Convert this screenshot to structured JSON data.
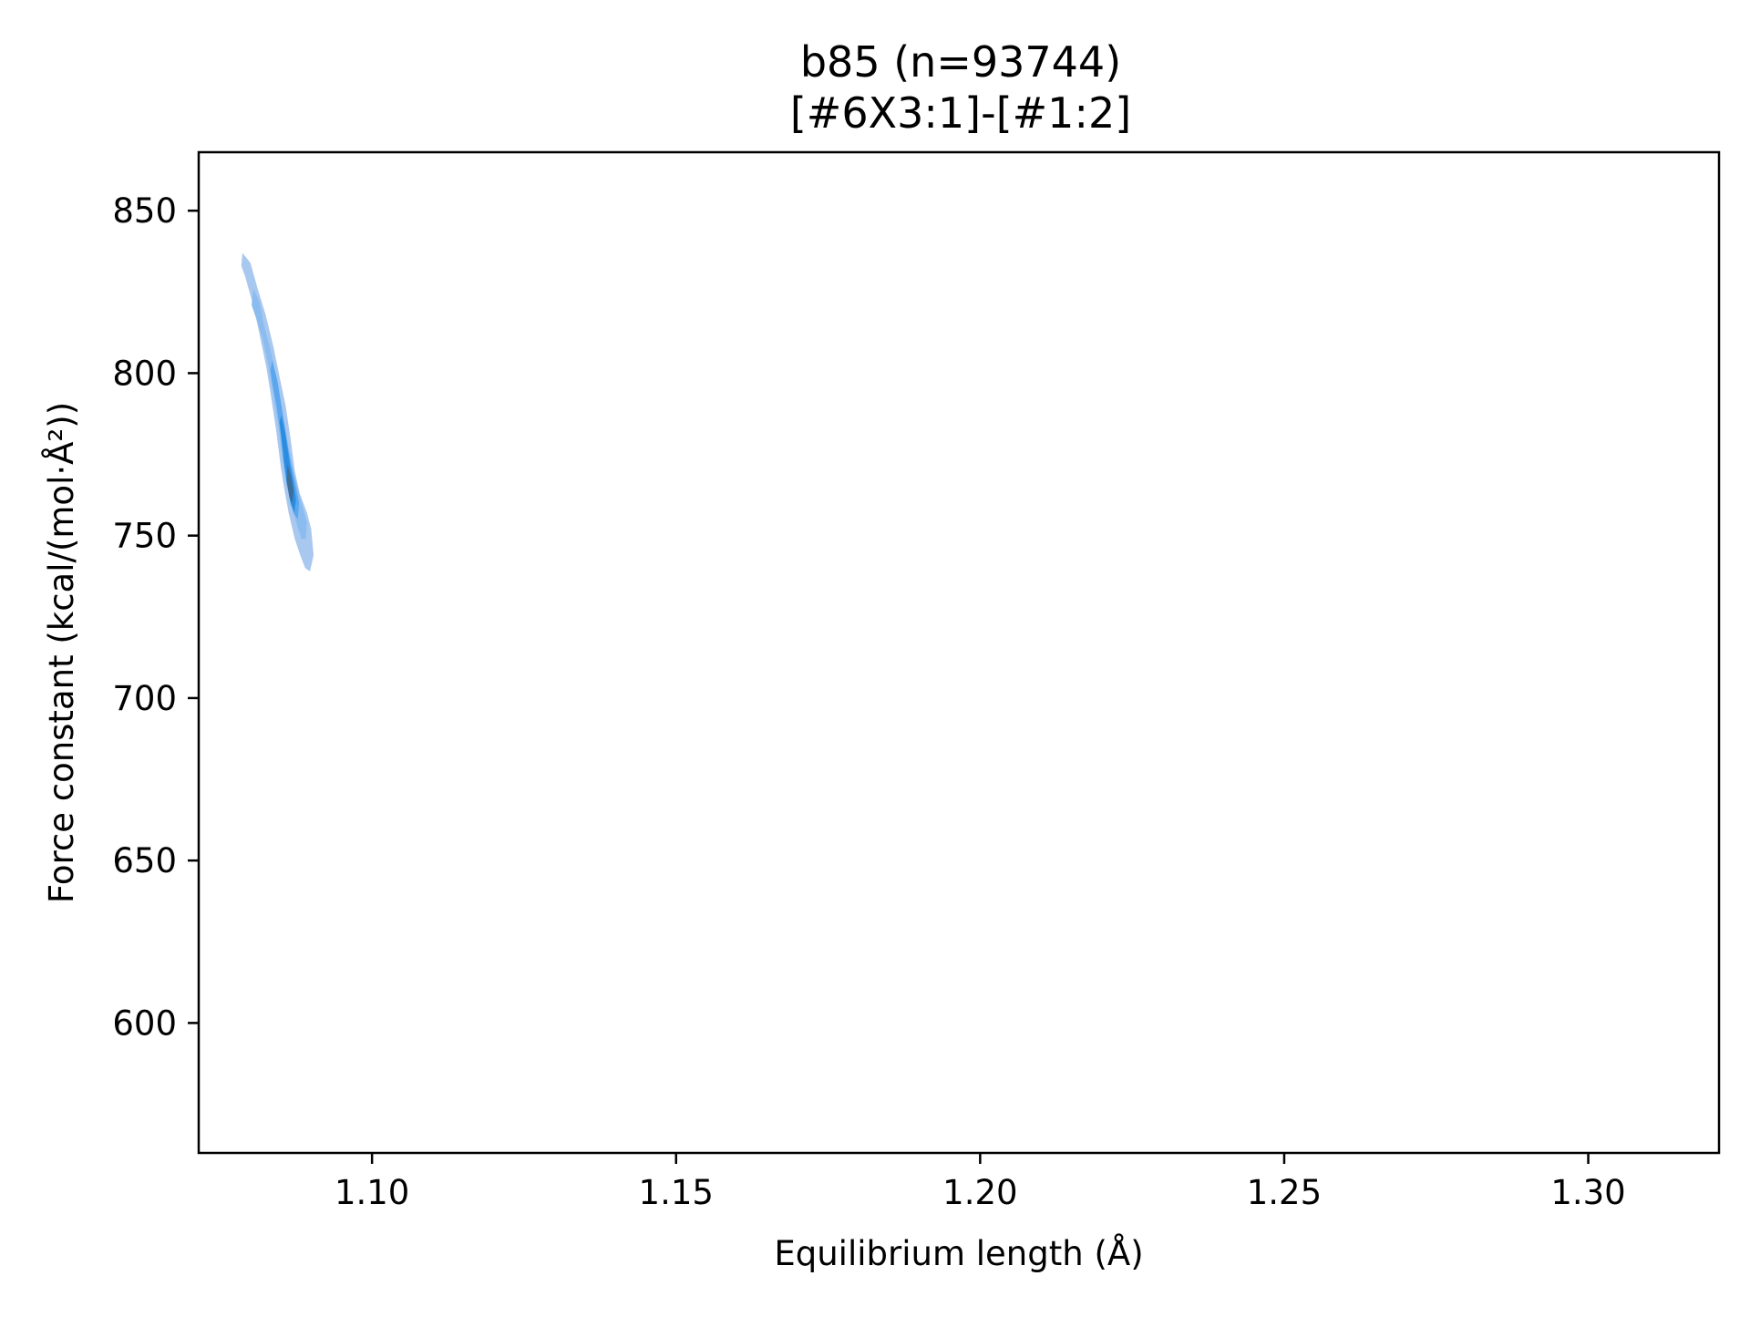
{
  "chart_data": {
    "type": "kde-density",
    "title": "b85 (n=93744)",
    "subtitle": "[#6X3:1]-[#1:2]",
    "xlabel": "Equilibrium length (Å)",
    "ylabel": "Force constant (kcal/(mol·Å²))",
    "xlim": [
      1.0715,
      1.3215
    ],
    "ylim": [
      560,
      868
    ],
    "x_ticks": [
      1.1,
      1.15,
      1.2,
      1.25,
      1.3
    ],
    "x_tick_labels": [
      "1.10",
      "1.15",
      "1.20",
      "1.25",
      "1.30"
    ],
    "y_ticks": [
      600,
      650,
      700,
      750,
      800,
      850
    ],
    "y_tick_labels": [
      "600",
      "650",
      "700",
      "750",
      "800",
      "850"
    ],
    "grid": false,
    "legend": "none",
    "colors": {
      "outer": "#a9c8ef",
      "low": "#8bbcf0",
      "mid": "#5aa6ef",
      "high": "#2b8de0",
      "peak": "#3d6f98"
    },
    "density_center": {
      "x": 1.0865,
      "y": 766
    },
    "density_span": {
      "x": [
        1.0785,
        1.092
      ],
      "y": [
        739,
        837
      ]
    },
    "contours": [
      {
        "level": "outer",
        "points": [
          [
            1.0787,
            837
          ],
          [
            1.08,
            834
          ],
          [
            1.0812,
            826
          ],
          [
            1.0825,
            818
          ],
          [
            1.0838,
            808
          ],
          [
            1.085,
            797
          ],
          [
            1.0858,
            790
          ],
          [
            1.0866,
            780
          ],
          [
            1.0873,
            770
          ],
          [
            1.0881,
            763
          ],
          [
            1.0893,
            757
          ],
          [
            1.09,
            752
          ],
          [
            1.0904,
            744
          ],
          [
            1.0898,
            739
          ],
          [
            1.089,
            740
          ],
          [
            1.0882,
            744
          ],
          [
            1.0873,
            749
          ],
          [
            1.0863,
            757
          ],
          [
            1.0856,
            764
          ],
          [
            1.085,
            771
          ],
          [
            1.0842,
            783
          ],
          [
            1.0833,
            794
          ],
          [
            1.0826,
            802
          ],
          [
            1.0815,
            812
          ],
          [
            1.0806,
            820
          ],
          [
            1.0791,
            830
          ],
          [
            1.0785,
            833
          ]
        ]
      },
      {
        "level": "low",
        "points": [
          [
            1.0805,
            826
          ],
          [
            1.0815,
            822
          ],
          [
            1.0822,
            815
          ],
          [
            1.0836,
            805
          ],
          [
            1.0845,
            795
          ],
          [
            1.0855,
            786
          ],
          [
            1.0864,
            776
          ],
          [
            1.0872,
            769
          ],
          [
            1.088,
            763
          ],
          [
            1.0887,
            758
          ],
          [
            1.0893,
            754
          ],
          [
            1.0891,
            749
          ],
          [
            1.0884,
            749
          ],
          [
            1.0877,
            753
          ],
          [
            1.0868,
            759
          ],
          [
            1.0859,
            766
          ],
          [
            1.0852,
            774
          ],
          [
            1.0846,
            784
          ],
          [
            1.0838,
            793
          ],
          [
            1.083,
            802
          ],
          [
            1.0821,
            810
          ],
          [
            1.0811,
            816
          ],
          [
            1.0802,
            821
          ]
        ]
      },
      {
        "level": "mid",
        "points": [
          [
            1.0836,
            804
          ],
          [
            1.0844,
            798
          ],
          [
            1.0852,
            789
          ],
          [
            1.086,
            779
          ],
          [
            1.0867,
            772
          ],
          [
            1.0874,
            766
          ],
          [
            1.088,
            760
          ],
          [
            1.0878,
            755
          ],
          [
            1.0871,
            757
          ],
          [
            1.0865,
            762
          ],
          [
            1.0857,
            771
          ],
          [
            1.085,
            781
          ],
          [
            1.0843,
            790
          ],
          [
            1.0836,
            797
          ],
          [
            1.0833,
            801
          ]
        ]
      },
      {
        "level": "high",
        "points": [
          [
            1.0851,
            787
          ],
          [
            1.0858,
            781
          ],
          [
            1.0864,
            773
          ],
          [
            1.0871,
            766
          ],
          [
            1.0875,
            761
          ],
          [
            1.0872,
            757
          ],
          [
            1.0866,
            760
          ],
          [
            1.086,
            766
          ],
          [
            1.0855,
            773
          ],
          [
            1.0851,
            780
          ],
          [
            1.0848,
            785
          ]
        ]
      },
      {
        "level": "peak",
        "points": [
          [
            1.0861,
            772
          ],
          [
            1.0867,
            768
          ],
          [
            1.0871,
            764
          ],
          [
            1.0869,
            760
          ],
          [
            1.0864,
            762
          ],
          [
            1.086,
            767
          ]
        ]
      }
    ]
  }
}
